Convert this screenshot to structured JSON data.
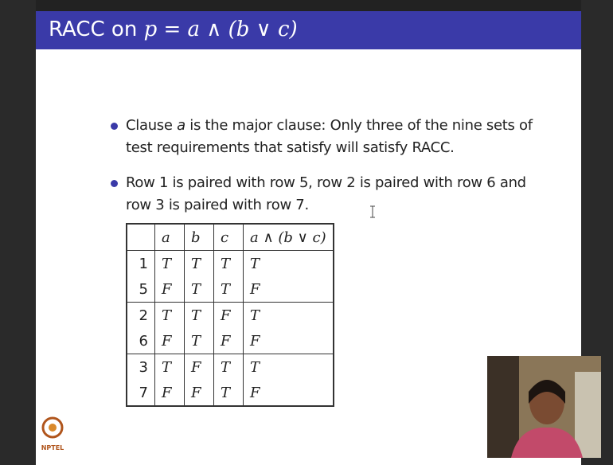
{
  "slide": {
    "title": {
      "prefix": "RACC on",
      "formula": "p = a ∧ (b ∨ c)"
    },
    "bullets": [
      {
        "parts": [
          "Clause ",
          "a",
          " is the major clause: Only three of the nine sets of test requirements that satisfy will satisfy RACC."
        ]
      },
      {
        "parts": [
          "Row 1 is paired with row 5, row 2 is paired with row 6 and row 3 is paired with row 7."
        ]
      }
    ],
    "table": {
      "header": [
        null,
        "a",
        "b",
        "c",
        "a ∧ (b ∨ c)"
      ],
      "rows": [
        [
          "1",
          "T",
          "T",
          "T",
          "T"
        ],
        [
          "5",
          "F",
          "T",
          "T",
          "F"
        ],
        [
          "2",
          "T",
          "T",
          "F",
          "T"
        ],
        [
          "6",
          "F",
          "T",
          "F",
          "F"
        ],
        [
          "3",
          "T",
          "F",
          "T",
          "T"
        ],
        [
          "7",
          "F",
          "F",
          "T",
          "F"
        ]
      ]
    },
    "logo": "NPTEL"
  }
}
